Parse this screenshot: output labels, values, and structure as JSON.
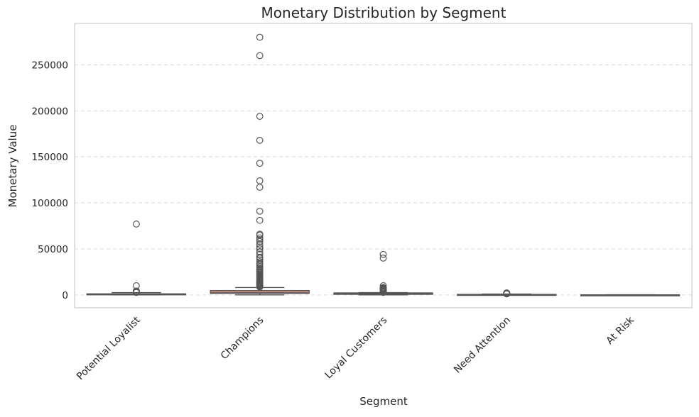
{
  "chart_data": {
    "type": "box",
    "title": "Monetary Distribution by Segment",
    "xlabel": "Segment",
    "ylabel": "Monetary Value",
    "categories": [
      "Potential Loyalist",
      "Champions",
      "Loyal Customers",
      "Need Attention",
      "At Risk"
    ],
    "ylim": [
      -14000,
      295000
    ],
    "yticks": [
      0,
      50000,
      100000,
      150000,
      200000,
      250000
    ],
    "ytick_labels": [
      "0",
      "50000",
      "100000",
      "150000",
      "200000",
      "250000"
    ],
    "grid": "y-dashed",
    "colors": {
      "box_fill": [
        "#8fb6d9",
        "#f2a48f",
        "#8fd0a7",
        "#c9a8dd",
        "#c8b28c"
      ],
      "box_edge": "#555555",
      "grid": "#d9d9d9",
      "spine": "#cccccc"
    },
    "boxes": [
      {
        "category": "Potential Loyalist",
        "whislo": 0,
        "q1": 250,
        "median": 600,
        "q3": 1200,
        "whishi": 2500,
        "fliers": [
          77000,
          10000,
          4200,
          3900,
          3600,
          3400,
          3200,
          3000,
          2800,
          2650
        ]
      },
      {
        "category": "Champions",
        "whislo": 0,
        "q1": 1600,
        "median": 2800,
        "q3": 4800,
        "whishi": 8000,
        "fliers": [
          280000,
          260000,
          194000,
          168000,
          143000,
          124000,
          117000,
          91000,
          81000,
          66000,
          65000,
          62000,
          60000,
          58000,
          55000,
          52000,
          50000,
          47000,
          44000,
          41000,
          40000,
          38000,
          36000,
          34000,
          33000,
          31000,
          29000,
          28000,
          27000,
          26000,
          25000,
          24000,
          23000,
          22000,
          21000,
          20000,
          19000,
          18000,
          17000,
          16000,
          15500,
          15000,
          14500,
          14000,
          13500,
          13000,
          12500,
          12000,
          11500,
          11000,
          10500,
          10000,
          9500,
          9000,
          8600
        ]
      },
      {
        "category": "Loyal Customers",
        "whislo": 0,
        "q1": 600,
        "median": 1300,
        "q3": 2200,
        "whishi": 2500,
        "fliers": [
          44000,
          40000,
          10000,
          8000,
          7500,
          7000,
          6500,
          6000,
          5500,
          5000,
          4600,
          4200,
          3800,
          3400,
          3000,
          2700
        ]
      },
      {
        "category": "Need Attention",
        "whislo": 0,
        "q1": 100,
        "median": 300,
        "q3": 600,
        "whishi": 1000,
        "fliers": [
          2200,
          2000,
          1800,
          1600,
          1500,
          1400,
          1300,
          1200,
          1100
        ]
      },
      {
        "category": "At Risk",
        "whislo": 0,
        "q1": 20,
        "median": 60,
        "q3": 120,
        "whishi": 250,
        "fliers": []
      }
    ]
  }
}
